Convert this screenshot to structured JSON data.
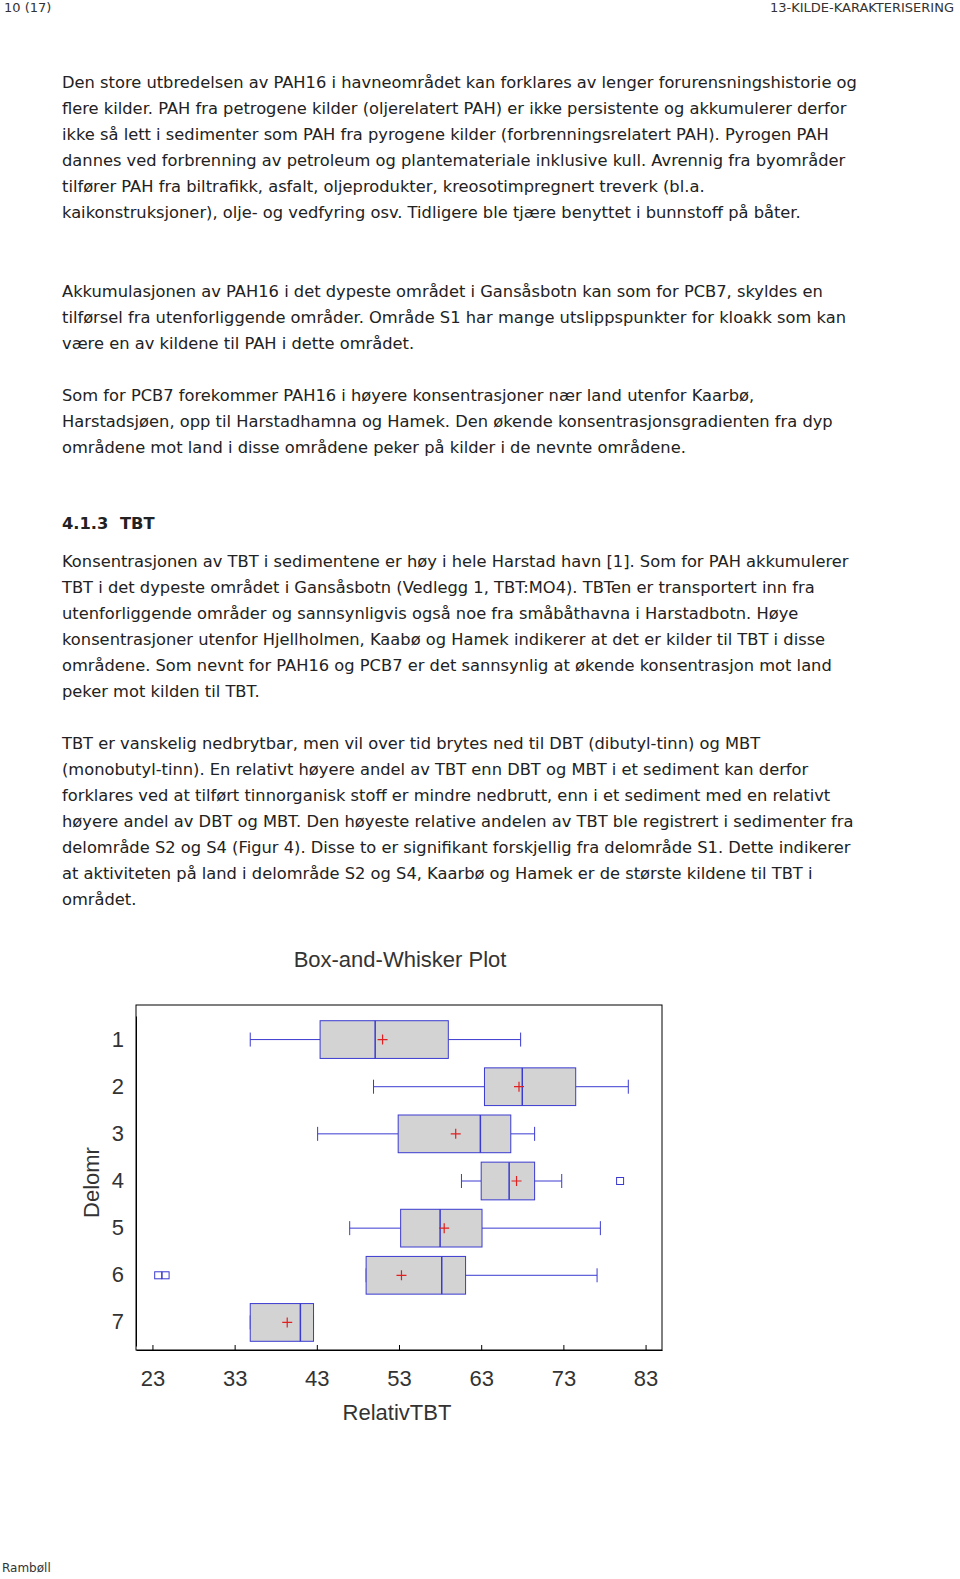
{
  "header": {
    "page": "10 (17)",
    "section": "13-KILDE-KARAKTERISERING"
  },
  "footer": "Rambøll",
  "paragraphs": [
    [
      "Den store utbredelsen av PAH16 i havneområdet kan forklares av lenger forurensningshistorie og",
      "flere kilder. PAH fra petrogene kilder (oljerelatert PAH) er ikke persistente og akkumulerer derfor",
      "ikke så lett i sedimenter som PAH fra pyrogene kilder (forbrenningsrelatert PAH). Pyrogen PAH",
      "dannes ved forbrenning av petroleum og plantemateriale inklusive kull. Avrennig fra byområder",
      "tilfører PAH fra biltrafikk, asfalt, oljeprodukter, kreosotimpregnert treverk (bl.a.",
      "kaikonstruksjoner), olje- og vedfyring osv. Tidligere ble tjære benyttet i bunnstoff på båter."
    ],
    [
      "Akkumulasjonen av PAH16 i det dypeste området i Gansåsbotn kan som for PCB7, skyldes en",
      "tilførsel fra utenforliggende områder. Område S1 har mange utslippspunkter for kloakk som kan",
      "være en av kildene til PAH i dette området."
    ],
    [
      "Som for PCB7 forekommer PAH16 i høyere konsentrasjoner nær land utenfor Kaarbø,",
      "Harstadsjøen, opp til Harstadhamna og Hamek. Den økende konsentrasjonsgradienten fra dyp",
      "områdene mot land i disse områdene peker på kilder i de nevnte områdene."
    ],
    [
      "Konsentrasjonen av TBT i sedimentene er høy i hele Harstad havn [1]. Som for PAH akkumulerer",
      "TBT i det dypeste området i Gansåsbotn (Vedlegg 1, TBT:MO4). TBTen er transportert inn fra",
      "utenforliggende områder og sannsynligvis også noe fra småbåthavna i Harstadbotn. Høye",
      "konsentrasjoner utenfor Hjellholmen, Kaabø og Hamek indikerer at det er kilder til TBT i disse",
      "områdene. Som nevnt for PAH16 og PCB7 er det sannsynlig at økende konsentrasjon mot land",
      "peker mot kilden til TBT."
    ],
    [
      "TBT er vanskelig nedbrytbar, men vil over tid brytes ned til DBT (dibutyl-tinn) og MBT",
      "(monobutyl-tinn). En relativt høyere andel av TBT enn DBT og MBT i et sediment kan derfor",
      "forklares ved at tilført tinnorganisk stoff er mindre nedbrutt, enn i et sediment med en relativt",
      "høyere andel av DBT og MBT. Den høyeste relative andelen av TBT ble registrert i sedimenter fra",
      "delområde S2 og S4 (Figur 4). Disse to er signifikant forskjellig fra delområde S1. Dette indikerer",
      "at aktiviteten på land i delområde S2 og S4, Kaarbø og Hamek er de største kildene til TBT i",
      "området."
    ]
  ],
  "heading": {
    "number": "4.1.3",
    "text": "TBT"
  },
  "chart_data": {
    "type": "box",
    "title": "Box-and-Whisker Plot",
    "x_label": "RelativTBT",
    "y_label": "Delomr",
    "orientation": "horizontal",
    "categories": [
      "1",
      "2",
      "3",
      "4",
      "5",
      "6",
      "7"
    ],
    "min": [
      34.9,
      49.9,
      43.1,
      60.6,
      47.0,
      49.0,
      34.9
    ],
    "q1": [
      43.4,
      63.4,
      52.9,
      63.0,
      53.2,
      49.0,
      34.9
    ],
    "median": [
      50.1,
      68.0,
      62.9,
      66.4,
      58.0,
      58.2,
      41.0
    ],
    "q3": [
      59.0,
      74.5,
      66.6,
      69.5,
      63.1,
      61.1,
      42.6
    ],
    "max": [
      67.8,
      80.9,
      69.5,
      72.8,
      77.5,
      77.1,
      42.6
    ],
    "mean": [
      51.0,
      67.6,
      59.9,
      67.3,
      58.5,
      53.3,
      39.4
    ],
    "outliers": [
      [],
      [],
      [],
      [
        79.9
      ],
      [],
      [
        23.7,
        24.6
      ],
      []
    ],
    "color": "#d3d3d3",
    "line_color": "#3a3ad0",
    "mean_color": "#e02020",
    "marker": "plus",
    "xlim": [
      21,
      85
    ],
    "xticks": [
      23,
      33,
      43,
      53,
      63,
      73,
      83
    ]
  }
}
